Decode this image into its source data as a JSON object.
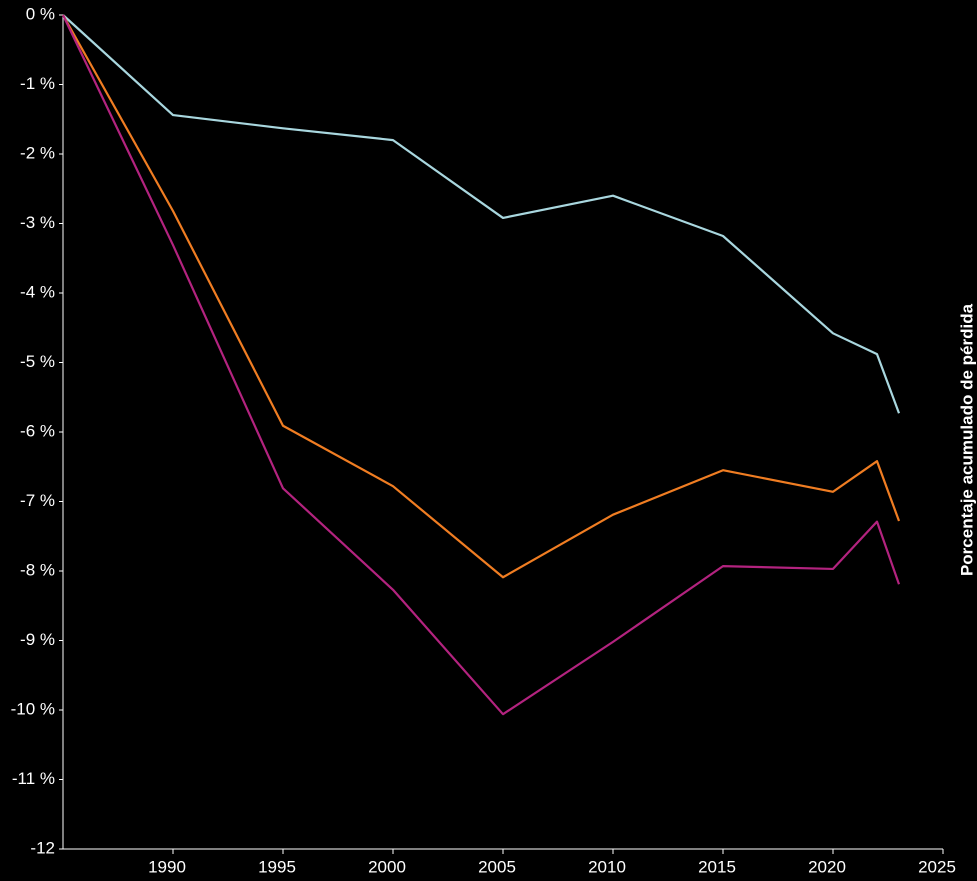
{
  "chart_data": {
    "type": "line",
    "ylabel": "Porcentaje acumulado de pérdida",
    "x": [
      1985,
      1990,
      1995,
      2000,
      2005,
      2010,
      2015,
      2020,
      2022,
      2023
    ],
    "series": [
      {
        "color": "#a9d7df",
        "values": [
          0,
          -1.44,
          -1.63,
          -1.8,
          -2.92,
          -2.6,
          -3.18,
          -4.58,
          -4.88,
          -5.73
        ]
      },
      {
        "color": "#f07d22",
        "values": [
          0,
          -2.82,
          -5.91,
          -6.78,
          -8.09,
          -7.19,
          -6.55,
          -6.86,
          -6.42,
          -7.28
        ]
      },
      {
        "color": "#b3237f",
        "values": [
          0,
          -3.31,
          -6.81,
          -8.27,
          -10.06,
          -9.02,
          -7.93,
          -7.97,
          -7.29,
          -8.19
        ]
      }
    ],
    "xlim": [
      1985,
      2025
    ],
    "xticks": [
      1990,
      1995,
      2000,
      2005,
      2010,
      2015,
      2020,
      2025
    ],
    "ylim": [
      -12,
      0
    ],
    "yticks": [
      {
        "value": 0,
        "label": "0 %"
      },
      {
        "value": -1,
        "label": "-1 %"
      },
      {
        "value": -2,
        "label": "-2 %"
      },
      {
        "value": -3,
        "label": "-3 %"
      },
      {
        "value": -4,
        "label": "-4 %"
      },
      {
        "value": -5,
        "label": "-5 %"
      },
      {
        "value": -6,
        "label": "-6 %"
      },
      {
        "value": -7,
        "label": "-7 %"
      },
      {
        "value": -8,
        "label": "-8 %"
      },
      {
        "value": -9,
        "label": "-9 %"
      },
      {
        "value": -10,
        "label": "-10 %"
      },
      {
        "value": -11,
        "label": "-11 %"
      },
      {
        "value": -12,
        "label": "-12"
      }
    ],
    "grid": false
  }
}
